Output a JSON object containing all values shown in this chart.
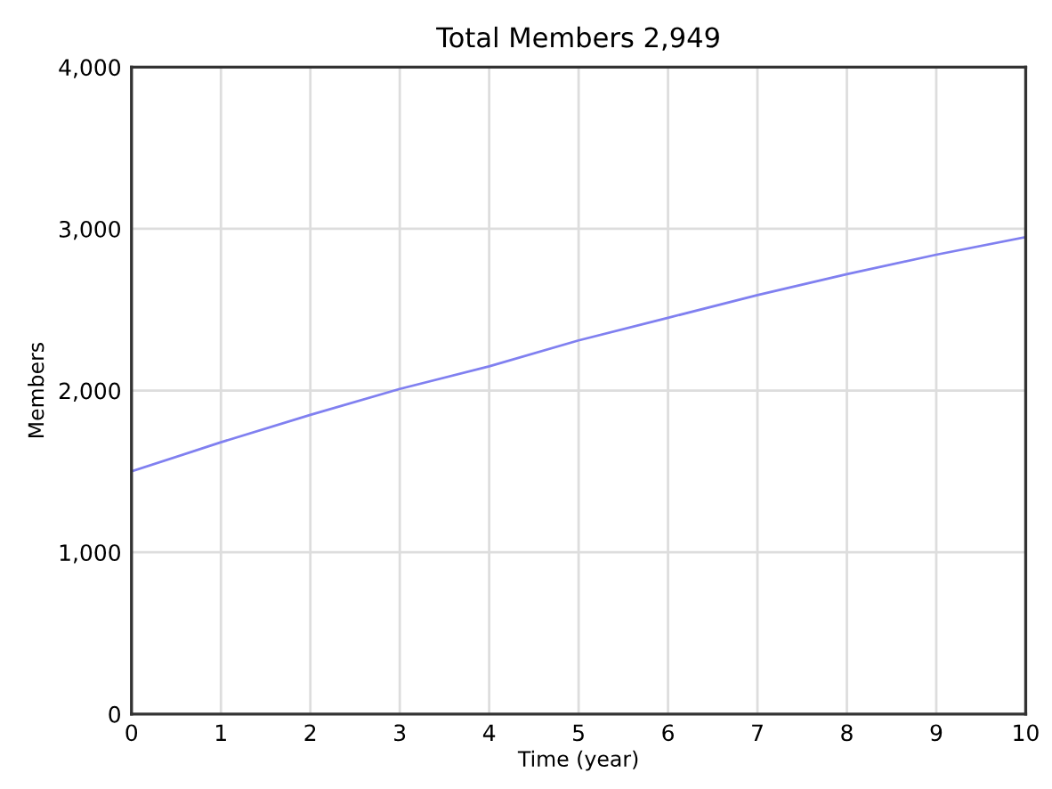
{
  "chart_data": {
    "type": "line",
    "title": "Total Members 2,949",
    "xlabel": "Time (year)",
    "ylabel": "Members",
    "x": [
      0,
      1,
      2,
      3,
      4,
      5,
      6,
      7,
      8,
      9,
      10
    ],
    "series": [
      {
        "color": "#8080f0",
        "values": [
          1500,
          1680,
          1850,
          2010,
          2150,
          2310,
          2450,
          2590,
          2720,
          2840,
          2949
        ]
      }
    ],
    "xlim": [
      0,
      10
    ],
    "ylim": [
      0,
      4000
    ],
    "xticks": [
      0,
      1,
      2,
      3,
      4,
      5,
      6,
      7,
      8,
      9,
      10
    ],
    "yticks": [
      {
        "value": 0,
        "label": "0"
      },
      {
        "value": 1000,
        "label": "1,000"
      },
      {
        "value": 2000,
        "label": "2,000"
      },
      {
        "value": 3000,
        "label": "3,000"
      },
      {
        "value": 4000,
        "label": "4,000"
      }
    ],
    "grid": true
  }
}
